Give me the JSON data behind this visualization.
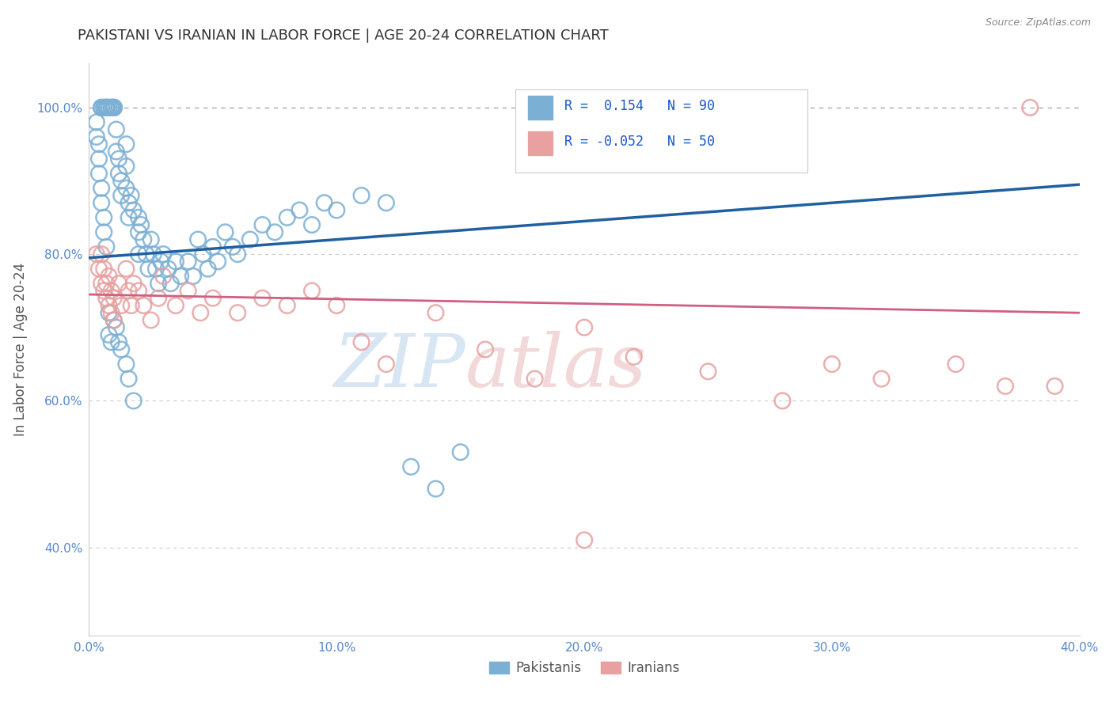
{
  "title": "PAKISTANI VS IRANIAN IN LABOR FORCE | AGE 20-24 CORRELATION CHART",
  "source": "Source: ZipAtlas.com",
  "ylabel": "In Labor Force | Age 20-24",
  "xlim": [
    0.0,
    0.4
  ],
  "ylim": [
    0.28,
    1.06
  ],
  "yticks": [
    0.4,
    0.6,
    0.8,
    1.0
  ],
  "ytick_labels": [
    "40.0%",
    "60.0%",
    "80.0%",
    "100.0%"
  ],
  "xticks": [
    0.0,
    0.1,
    0.2,
    0.3,
    0.4
  ],
  "xtick_labels": [
    "0.0%",
    "10.0%",
    "20.0%",
    "30.0%",
    "40.0%"
  ],
  "r_pakistani": 0.154,
  "n_pakistani": 90,
  "r_iranian": -0.052,
  "n_iranian": 50,
  "legend_labels": [
    "Pakistanis",
    "Iranians"
  ],
  "blue_color": "#7bafd4",
  "pink_color": "#e8a0a0",
  "blue_line_color": "#2060a0",
  "pink_line_color": "#d06080",
  "legend_r_color": "#1a56cc",
  "background_color": "#ffffff",
  "pak_line_x0": 0.0,
  "pak_line_y0": 0.795,
  "pak_line_x1": 0.4,
  "pak_line_y1": 0.895,
  "iran_line_x0": 0.0,
  "iran_line_y0": 0.745,
  "iran_line_x1": 0.4,
  "iran_line_y1": 0.72,
  "pakistani_x": [
    0.005,
    0.005,
    0.006,
    0.006,
    0.007,
    0.007,
    0.007,
    0.007,
    0.008,
    0.008,
    0.009,
    0.009,
    0.009,
    0.01,
    0.01,
    0.01,
    0.01,
    0.011,
    0.011,
    0.012,
    0.012,
    0.013,
    0.013,
    0.015,
    0.015,
    0.015,
    0.016,
    0.016,
    0.017,
    0.018,
    0.02,
    0.02,
    0.02,
    0.021,
    0.022,
    0.023,
    0.024,
    0.025,
    0.026,
    0.027,
    0.028,
    0.029,
    0.03,
    0.032,
    0.033,
    0.035,
    0.037,
    0.04,
    0.042,
    0.044,
    0.046,
    0.048,
    0.05,
    0.052,
    0.055,
    0.058,
    0.06,
    0.065,
    0.07,
    0.075,
    0.08,
    0.085,
    0.09,
    0.095,
    0.1,
    0.11,
    0.12,
    0.13,
    0.14,
    0.15,
    0.003,
    0.003,
    0.004,
    0.004,
    0.004,
    0.005,
    0.005,
    0.006,
    0.006,
    0.007,
    0.008,
    0.008,
    0.009,
    0.01,
    0.011,
    0.012,
    0.013,
    0.015,
    0.016,
    0.018
  ],
  "pakistani_y": [
    1.0,
    1.0,
    1.0,
    1.0,
    1.0,
    1.0,
    1.0,
    1.0,
    1.0,
    1.0,
    1.0,
    1.0,
    1.0,
    1.0,
    1.0,
    1.0,
    1.0,
    0.97,
    0.94,
    0.93,
    0.91,
    0.9,
    0.88,
    0.95,
    0.92,
    0.89,
    0.87,
    0.85,
    0.88,
    0.86,
    0.85,
    0.83,
    0.8,
    0.84,
    0.82,
    0.8,
    0.78,
    0.82,
    0.8,
    0.78,
    0.76,
    0.79,
    0.8,
    0.78,
    0.76,
    0.79,
    0.77,
    0.79,
    0.77,
    0.82,
    0.8,
    0.78,
    0.81,
    0.79,
    0.83,
    0.81,
    0.8,
    0.82,
    0.84,
    0.83,
    0.85,
    0.86,
    0.84,
    0.87,
    0.86,
    0.88,
    0.87,
    0.51,
    0.48,
    0.53,
    0.98,
    0.96,
    0.95,
    0.93,
    0.91,
    0.89,
    0.87,
    0.85,
    0.83,
    0.81,
    0.72,
    0.69,
    0.68,
    0.71,
    0.7,
    0.68,
    0.67,
    0.65,
    0.63,
    0.6
  ],
  "iranian_x": [
    0.003,
    0.004,
    0.005,
    0.005,
    0.006,
    0.006,
    0.007,
    0.007,
    0.008,
    0.008,
    0.009,
    0.009,
    0.01,
    0.01,
    0.012,
    0.013,
    0.015,
    0.016,
    0.017,
    0.018,
    0.02,
    0.022,
    0.025,
    0.028,
    0.03,
    0.035,
    0.04,
    0.045,
    0.05,
    0.06,
    0.07,
    0.08,
    0.09,
    0.1,
    0.11,
    0.12,
    0.14,
    0.16,
    0.18,
    0.2,
    0.22,
    0.25,
    0.28,
    0.3,
    0.32,
    0.35,
    0.37,
    0.38,
    0.2,
    0.39
  ],
  "iranian_y": [
    0.8,
    0.78,
    0.8,
    0.76,
    0.78,
    0.75,
    0.76,
    0.74,
    0.77,
    0.73,
    0.75,
    0.72,
    0.74,
    0.71,
    0.76,
    0.73,
    0.78,
    0.75,
    0.73,
    0.76,
    0.75,
    0.73,
    0.71,
    0.74,
    0.77,
    0.73,
    0.75,
    0.72,
    0.74,
    0.72,
    0.74,
    0.73,
    0.75,
    0.73,
    0.68,
    0.65,
    0.72,
    0.67,
    0.63,
    0.7,
    0.66,
    0.64,
    0.6,
    0.65,
    0.63,
    0.65,
    0.62,
    1.0,
    0.41,
    0.62
  ]
}
